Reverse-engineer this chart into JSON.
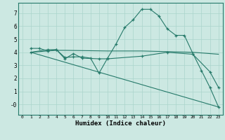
{
  "xlabel": "Humidex (Indice chaleur)",
  "background_color": "#cce8e2",
  "grid_color": "#aad4cc",
  "line_color": "#267a6a",
  "xlim": [
    -0.5,
    23.5
  ],
  "ylim": [
    -0.8,
    7.8
  ],
  "series": [
    {
      "x": [
        1,
        2,
        3,
        4,
        5,
        6,
        7,
        8,
        9,
        10,
        11,
        12,
        13,
        14,
        15,
        16,
        17,
        18,
        19,
        20,
        21,
        22,
        23
      ],
      "y": [
        4.3,
        4.3,
        4.1,
        4.2,
        3.6,
        3.65,
        3.65,
        3.55,
        2.4,
        3.55,
        4.65,
        5.9,
        6.5,
        7.3,
        7.3,
        6.8,
        5.8,
        5.3,
        5.3,
        3.9,
        2.6,
        1.3,
        -0.2
      ],
      "marker": "+"
    },
    {
      "x": [
        1,
        4,
        5,
        10,
        14,
        20,
        22,
        23
      ],
      "y": [
        4.0,
        4.15,
        4.15,
        4.1,
        4.1,
        4.0,
        3.9,
        3.85
      ],
      "marker": null
    },
    {
      "x": [
        1,
        23
      ],
      "y": [
        4.0,
        -0.2
      ],
      "marker": null
    },
    {
      "x": [
        1,
        3,
        4,
        5,
        6,
        7,
        9,
        10,
        14,
        17,
        20,
        22,
        23
      ],
      "y": [
        4.0,
        4.2,
        4.2,
        3.5,
        3.9,
        3.55,
        3.5,
        3.5,
        3.7,
        4.0,
        3.85,
        2.5,
        1.3
      ],
      "marker": "+"
    }
  ]
}
